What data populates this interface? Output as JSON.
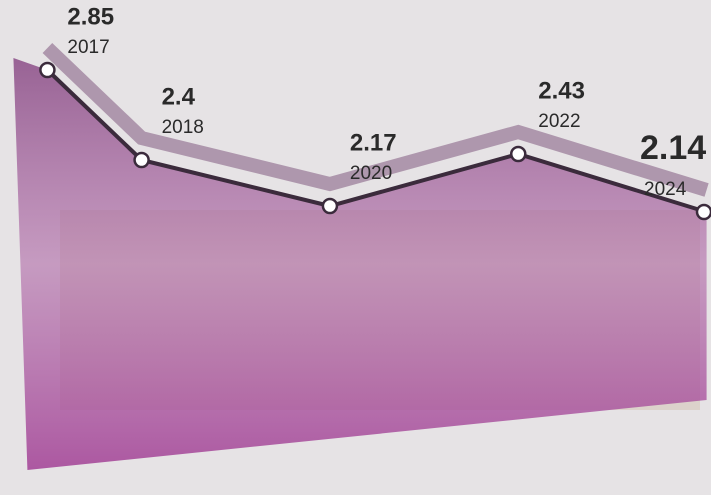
{
  "chart_data": {
    "type": "line",
    "x": [
      2017,
      2018,
      2020,
      2022,
      2024
    ],
    "xlim": [
      2016.9,
      2024.1
    ],
    "ylim": [
      1.9,
      3.0
    ],
    "series": [
      {
        "color": "#3b2b3c",
        "values": [
          2.85,
          2.4,
          2.17,
          2.43,
          2.14
        ]
      }
    ]
  }
}
